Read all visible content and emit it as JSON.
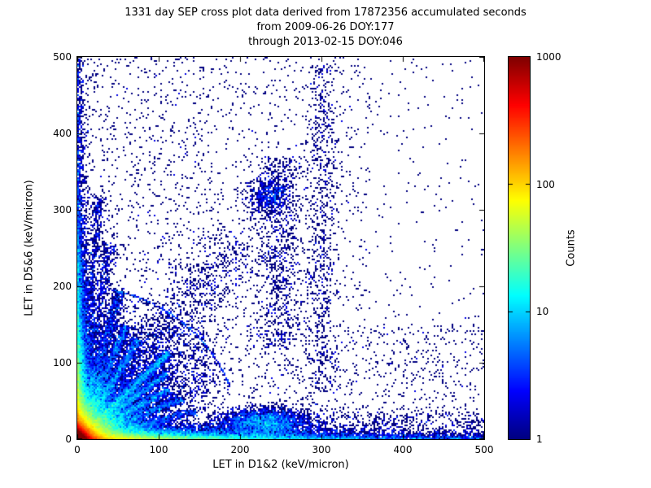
{
  "title": {
    "line1": "1331 day SEP cross plot data derived from 17872356 accumulated seconds",
    "line2": "from 2009-06-26 DOY:177",
    "line3": "through 2013-02-15 DOY:046"
  },
  "axes": {
    "x": {
      "label": "LET in D1&2 (keV/micron)",
      "min": 0,
      "max": 500,
      "ticks": [
        0,
        100,
        200,
        300,
        400,
        500
      ]
    },
    "y": {
      "label": "LET in D5&6 (keV/micron)",
      "min": 0,
      "max": 500,
      "ticks": [
        0,
        100,
        200,
        300,
        400,
        500
      ]
    }
  },
  "colorbar": {
    "label": "Counts",
    "scale": "log",
    "min": 1,
    "max": 1000,
    "ticks": [
      1,
      10,
      100,
      1000
    ],
    "colormap": "jet"
  },
  "chart_data": {
    "type": "heatmap",
    "title": "1331 day SEP cross plot data derived from 17872356 accumulated seconds from 2009-06-26 DOY:177 through 2013-02-15 DOY:046",
    "xlabel": "LET in D1&2 (keV/micron)",
    "ylabel": "LET in D5&6 (keV/micron)",
    "x_range": [
      0,
      500
    ],
    "y_range": [
      0,
      500
    ],
    "count_range": [
      1,
      1000
    ],
    "count_scale": "log",
    "colormap": "jet",
    "description": "2D histogram of coincident LET measurements. Extremely hot (red/orange, ~1000 counts) core at the origin, bright yellow-green-cyan halo within ~40 keV/micron, dense band hugging the x-axis out to 500, dense column hugging the y-axis to ~250, multiple radial streak tracks fanning from the origin at slopes between ~0.25 and ~4, a diffuse diagonal trail reaching a distinct dark-blue cluster near (235,318), a sparse vertical trail near x=300 reaching y~480, a small dense mound on the x-axis band near x=232, and sparse single-count (dark blue) points scattered over the rest of the plane, densest toward the lower left.",
    "seed": 20130215,
    "clusters": [
      {
        "kind": "exp2",
        "sx": 5,
        "sy": 5,
        "n": 50000
      },
      {
        "kind": "exp2",
        "sx": 18,
        "sy": 18,
        "n": 22000
      },
      {
        "kind": "exp2",
        "sx": 90,
        "sy": 6,
        "n": 15000
      },
      {
        "kind": "exp2",
        "sx": 420,
        "sy": 4,
        "n": 4500
      },
      {
        "kind": "exp2",
        "sx": 5,
        "sy": 85,
        "n": 9000
      },
      {
        "kind": "exp2",
        "sx": 4,
        "sy": 280,
        "n": 2200
      },
      {
        "kind": "streak",
        "angle": 45,
        "len": 160,
        "jitter": 3,
        "n": 2200
      },
      {
        "kind": "streak",
        "angle": 52,
        "len": 330,
        "jitter": 20,
        "n": 1300
      },
      {
        "kind": "streak",
        "angle": 38,
        "len": 140,
        "jitter": 3,
        "n": 1400
      },
      {
        "kind": "streak",
        "angle": 30,
        "len": 130,
        "jitter": 3,
        "n": 1200
      },
      {
        "kind": "streak",
        "angle": 60,
        "len": 150,
        "jitter": 3,
        "n": 1400
      },
      {
        "kind": "streak",
        "angle": 68,
        "len": 160,
        "jitter": 3,
        "n": 1200
      },
      {
        "kind": "streak",
        "angle": 75,
        "len": 200,
        "jitter": 4,
        "n": 1200
      },
      {
        "kind": "streak",
        "angle": 81,
        "len": 260,
        "jitter": 5,
        "n": 1000
      },
      {
        "kind": "streak",
        "angle": 85,
        "len": 320,
        "jitter": 4,
        "n": 800
      },
      {
        "kind": "streak",
        "angle": 22,
        "len": 140,
        "jitter": 3,
        "n": 900
      },
      {
        "kind": "streak",
        "angle": 14,
        "len": 150,
        "jitter": 3,
        "n": 900
      },
      {
        "kind": "fan",
        "a1": 20,
        "a2": 78,
        "rexp": 70,
        "rmax": 200,
        "n": 5000
      },
      {
        "kind": "blob",
        "cx": 235,
        "cy": 318,
        "sx": 14,
        "sy": 12,
        "n": 520
      },
      {
        "kind": "blob",
        "cx": 232,
        "cy": 22,
        "sx": 26,
        "sy": 9,
        "n": 2600
      },
      {
        "kind": "vstrip",
        "x": 300,
        "sx": 10,
        "y0": 60,
        "y1": 490,
        "n": 700
      },
      {
        "kind": "vstrip",
        "x": 248,
        "sx": 16,
        "y0": 120,
        "y1": 370,
        "n": 900
      },
      {
        "kind": "uniform",
        "x0": 0,
        "x1": 160,
        "y0": 150,
        "y1": 500,
        "n": 900
      },
      {
        "kind": "uniform",
        "x0": 160,
        "x1": 360,
        "y0": 150,
        "y1": 500,
        "n": 800
      },
      {
        "kind": "uniform",
        "x0": 360,
        "x1": 500,
        "y0": 150,
        "y1": 500,
        "n": 170
      },
      {
        "kind": "uniform",
        "x0": 160,
        "x1": 500,
        "y0": 35,
        "y1": 150,
        "n": 800
      },
      {
        "kind": "uniform",
        "x0": 0,
        "x1": 160,
        "y0": 35,
        "y1": 150,
        "n": 1400
      },
      {
        "kind": "uniform",
        "x0": 160,
        "x1": 500,
        "y0": 0,
        "y1": 35,
        "n": 900
      }
    ]
  }
}
